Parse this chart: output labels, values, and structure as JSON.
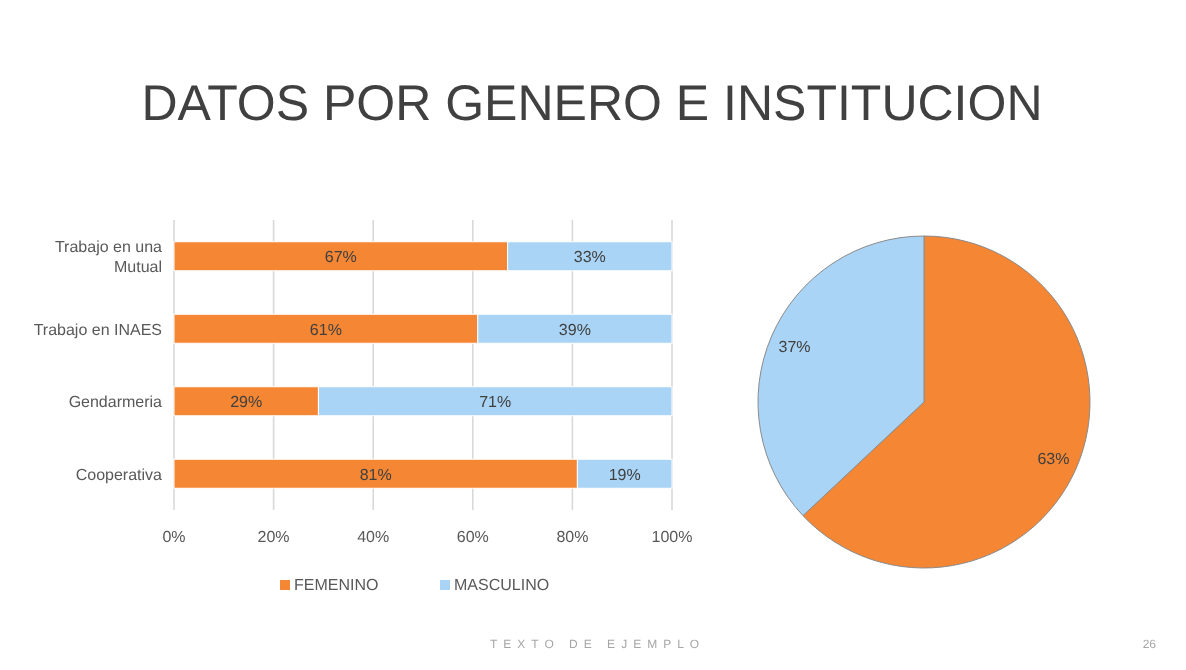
{
  "chart_data": [
    {
      "type": "bar",
      "title": "DATOS POR GENERO E INSTITUCION",
      "orientation": "horizontal",
      "stacked": true,
      "categories": [
        "Trabajo en una Mutual",
        "Trabajo en INAES",
        "Gendarmeria",
        "Cooperativa"
      ],
      "series": [
        {
          "name": "FEMENINO",
          "color": "#f58634",
          "values": [
            67,
            61,
            29,
            81
          ],
          "value_labels": [
            "67%",
            "61%",
            "29%",
            "81%"
          ]
        },
        {
          "name": "MASCULINO",
          "color": "#a9d4f5",
          "values": [
            33,
            39,
            71,
            19
          ],
          "value_labels": [
            "33%",
            "39%",
            "71%",
            "19%"
          ]
        }
      ],
      "xlim": [
        0,
        100
      ],
      "xticks": [
        {
          "value": 0,
          "label": "0%"
        },
        {
          "value": 20,
          "label": "20%"
        },
        {
          "value": 40,
          "label": "40%"
        },
        {
          "value": 60,
          "label": "60%"
        },
        {
          "value": 80,
          "label": "80%"
        },
        {
          "value": 100,
          "label": "100%"
        }
      ],
      "grid": "x",
      "legend": "bottom",
      "annotations": [
        "TEXTO DE EJEMPLO",
        "26"
      ]
    },
    {
      "type": "pie",
      "categories": [
        null,
        null
      ],
      "values": [
        63,
        37
      ],
      "colors": [
        "#f58634",
        "#a9d4f5"
      ],
      "value_labels": [
        "63%",
        "37%"
      ]
    }
  ]
}
